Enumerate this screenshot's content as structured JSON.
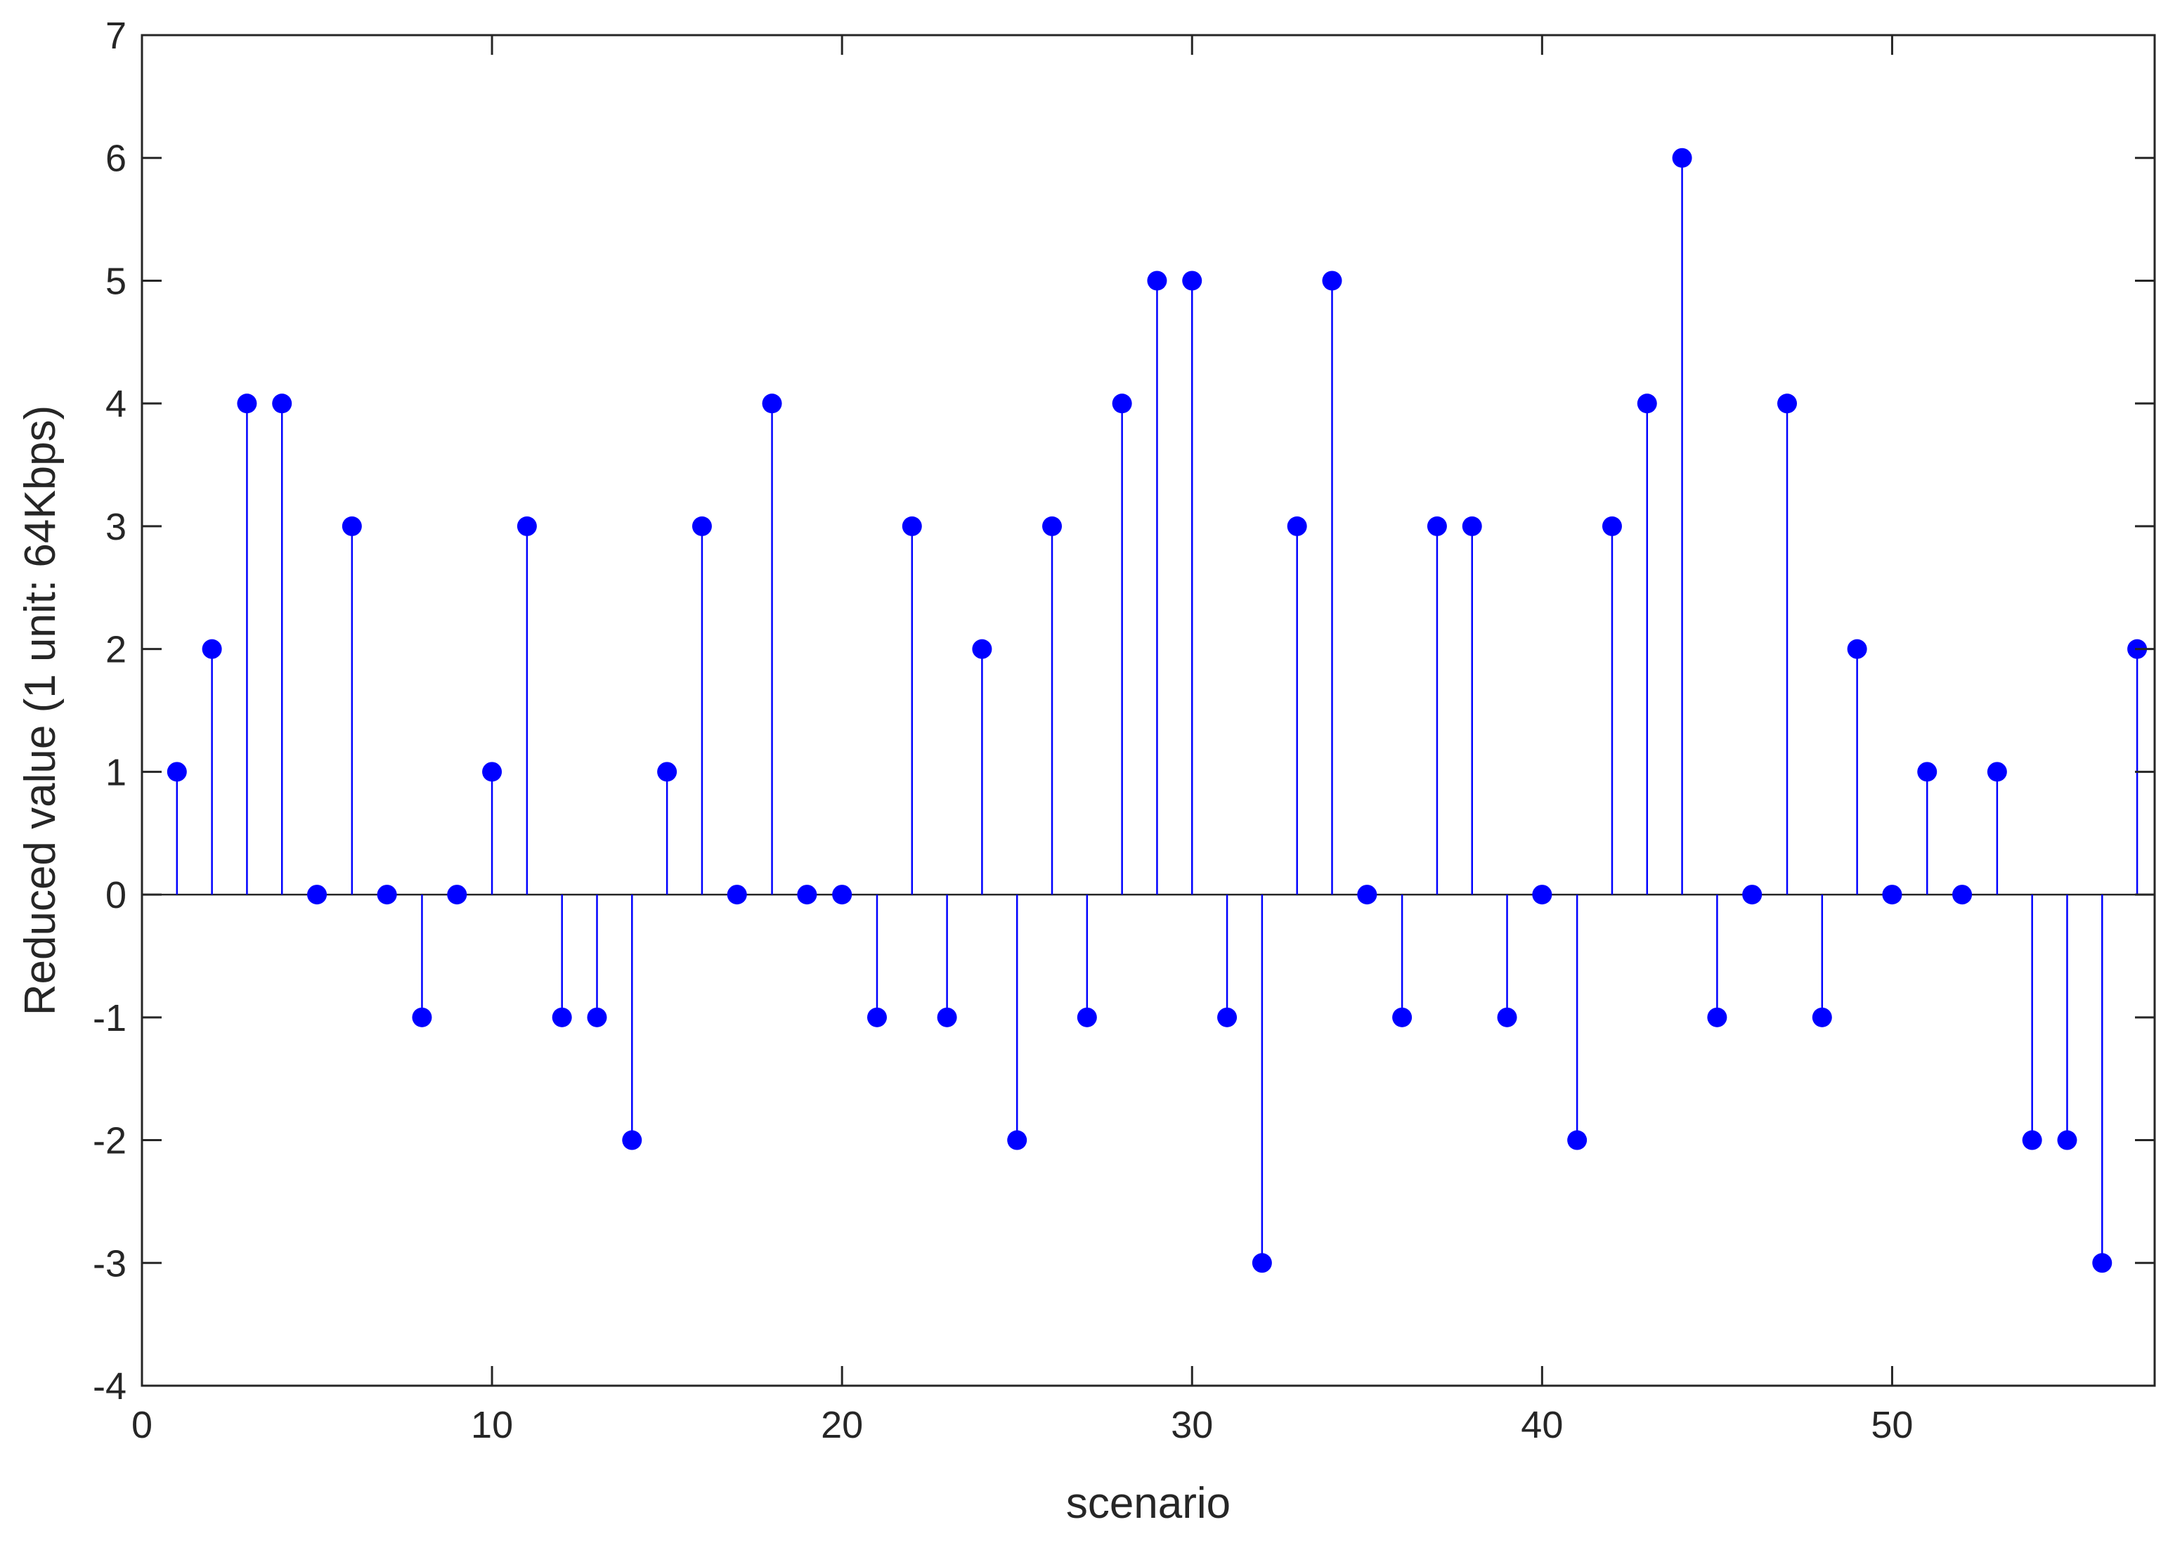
{
  "chart_data": {
    "type": "stem",
    "title": "",
    "xlabel": "scenario",
    "ylabel": "Reduced value (1 unit: 64Kbps)",
    "xlim": [
      0,
      57.5
    ],
    "ylim": [
      -4,
      7
    ],
    "xticks": [
      0,
      10,
      20,
      30,
      40,
      50
    ],
    "yticks": [
      -4,
      -3,
      -2,
      -1,
      0,
      1,
      2,
      3,
      4,
      5,
      6,
      7
    ],
    "grid": false,
    "legend": "none",
    "color": "#0000ff",
    "x": [
      1,
      2,
      3,
      4,
      5,
      6,
      7,
      8,
      9,
      10,
      11,
      12,
      13,
      14,
      15,
      16,
      17,
      18,
      19,
      20,
      21,
      22,
      23,
      24,
      25,
      26,
      27,
      28,
      29,
      30,
      31,
      32,
      33,
      34,
      35,
      36,
      37,
      38,
      39,
      40,
      41,
      42,
      43,
      44,
      45,
      46,
      47,
      48,
      49,
      50,
      51,
      52,
      53,
      54,
      55,
      56,
      57
    ],
    "values": [
      1,
      2,
      4,
      4,
      0,
      3,
      0,
      -1,
      0,
      1,
      3,
      -1,
      -1,
      -2,
      1,
      3,
      0,
      4,
      0,
      0,
      -1,
      3,
      -1,
      2,
      -2,
      3,
      -1,
      4,
      5,
      5,
      -1,
      -3,
      3,
      5,
      0,
      -1,
      3,
      3,
      -1,
      0,
      -2,
      3,
      4,
      6,
      -1,
      0,
      4,
      -1,
      2,
      0,
      1,
      0,
      1,
      -2,
      -2,
      -3,
      2
    ]
  }
}
